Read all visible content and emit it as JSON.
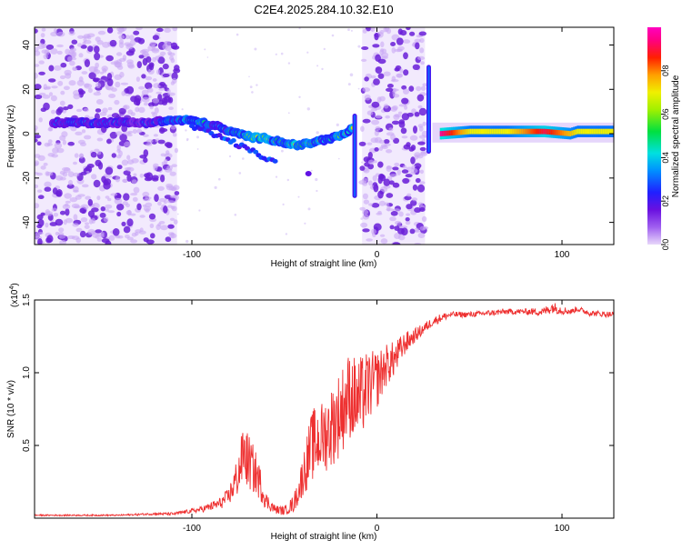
{
  "title": "C2E4.2025.284.10.32.E10",
  "colors": {
    "snr_line": "#ee3030",
    "sparse_dot_dark": "#6a1fd8",
    "sparse_dot_light": "#c9a8f5",
    "axis": "#000000"
  },
  "chart_data": [
    {
      "type": "heatmap",
      "title": "C2E4.2025.284.10.32.E10",
      "xlabel": "Height of straight line (km)",
      "ylabel": "Frequency (Hz)",
      "xlim": [
        -185,
        128
      ],
      "ylim": [
        -50,
        48
      ],
      "x_ticks": [
        -100,
        0,
        100
      ],
      "x_tick_labels": [
        "-100",
        "0",
        "100"
      ],
      "y_ticks": [
        -40,
        -20,
        0,
        20,
        40
      ],
      "y_tick_labels": [
        "-40",
        "-20",
        "0",
        "20",
        "40"
      ],
      "colorbar": {
        "label": "Normalized spectral amplitude",
        "range": [
          0,
          1
        ],
        "ticks": [
          0.0,
          0.2,
          0.4,
          0.6,
          0.8
        ],
        "tick_labels": [
          "0.0",
          "0.2",
          "0.4",
          "0.6",
          "0.8"
        ]
      },
      "noise_regions": [
        {
          "x": [
            -185,
            -108
          ],
          "y": [
            -50,
            48
          ]
        },
        {
          "x": [
            -8,
            26
          ],
          "y": [
            -50,
            48
          ]
        }
      ],
      "ridge": {
        "x": [
          -175,
          -160,
          -140,
          -125,
          -110,
          -105,
          -100,
          -95,
          -90,
          -85,
          -80,
          -75,
          -70,
          -65,
          -60,
          -55,
          -50,
          -45,
          -40,
          -35,
          -30,
          -25,
          -20,
          -15,
          -12
        ],
        "y": [
          5,
          5,
          5,
          5,
          6,
          6,
          6,
          5,
          4,
          3,
          1,
          0,
          -1,
          -2,
          -2,
          -3,
          -4,
          -5,
          -5,
          -4,
          -3,
          -2,
          -1,
          1,
          4
        ],
        "amplitude": [
          0.3,
          0.35,
          0.3,
          0.3,
          0.45,
          0.5,
          0.55,
          0.5,
          0.45,
          0.4,
          0.45,
          0.5,
          0.55,
          0.6,
          0.6,
          0.55,
          0.6,
          0.6,
          0.65,
          0.5,
          0.55,
          0.55,
          0.5,
          0.55,
          0.65
        ]
      },
      "tone": {
        "x": [
          34,
          50,
          70,
          90,
          104,
          108,
          128
        ],
        "y": [
          0,
          1,
          1,
          1,
          0,
          1,
          1
        ],
        "amplitude": [
          0.95,
          0.7,
          0.7,
          0.9,
          0.75,
          0.7,
          0.7
        ]
      }
    },
    {
      "type": "line",
      "xlabel": "Height of straight line (km)",
      "ylabel": "SNR (10 * v/v)",
      "y_scale_label": "(x10",
      "y_scale_exponent": "4",
      "y_scale_close": ")",
      "xlim": [
        -185,
        128
      ],
      "ylim": [
        0,
        1.5
      ],
      "x_ticks": [
        -100,
        0,
        100
      ],
      "x_tick_labels": [
        "-100",
        "0",
        "100"
      ],
      "y_ticks": [
        0.5,
        1.0,
        1.5
      ],
      "y_tick_labels": [
        "0.5",
        "1.0",
        "1.5"
      ],
      "series": [
        {
          "name": "SNR",
          "x": [
            -185,
            -160,
            -140,
            -120,
            -110,
            -100,
            -95,
            -90,
            -85,
            -80,
            -75,
            -72,
            -70,
            -65,
            -62,
            -60,
            -55,
            -50,
            -45,
            -42,
            -40,
            -35,
            -30,
            -25,
            -20,
            -15,
            -10,
            -5,
            0,
            5,
            10,
            15,
            20,
            25,
            30,
            35,
            40,
            45,
            50,
            60,
            70,
            80,
            90,
            95,
            100,
            105,
            108,
            115,
            128
          ],
          "values": [
            0.02,
            0.02,
            0.02,
            0.03,
            0.03,
            0.05,
            0.06,
            0.08,
            0.1,
            0.15,
            0.3,
            0.45,
            0.4,
            0.3,
            0.2,
            0.12,
            0.06,
            0.05,
            0.1,
            0.2,
            0.3,
            0.5,
            0.55,
            0.62,
            0.72,
            0.85,
            0.8,
            0.9,
            0.95,
            1.05,
            1.1,
            1.2,
            1.25,
            1.3,
            1.35,
            1.38,
            1.4,
            1.4,
            1.4,
            1.41,
            1.42,
            1.42,
            1.42,
            1.45,
            1.43,
            1.42,
            1.44,
            1.41,
            1.4
          ],
          "noise_amplitude": [
            0.005,
            0.005,
            0.005,
            0.008,
            0.01,
            0.015,
            0.02,
            0.03,
            0.04,
            0.06,
            0.15,
            0.2,
            0.2,
            0.15,
            0.1,
            0.06,
            0.03,
            0.03,
            0.06,
            0.1,
            0.15,
            0.25,
            0.25,
            0.28,
            0.3,
            0.3,
            0.3,
            0.25,
            0.2,
            0.15,
            0.12,
            0.08,
            0.05,
            0.04,
            0.03,
            0.03,
            0.02,
            0.02,
            0.02,
            0.02,
            0.02,
            0.02,
            0.03,
            0.04,
            0.03,
            0.02,
            0.02,
            0.02,
            0.02
          ]
        }
      ]
    }
  ]
}
